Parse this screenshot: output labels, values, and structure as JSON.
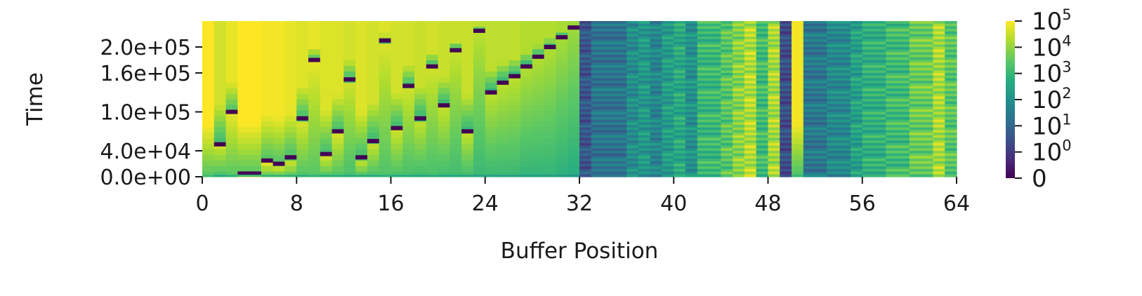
{
  "chart_data": {
    "type": "heatmap",
    "xlabel": "Buffer Position",
    "ylabel": "Time",
    "xlim": [
      0,
      64
    ],
    "ylim": [
      0,
      240000
    ],
    "x_ticks": [
      0,
      8,
      16,
      24,
      32,
      40,
      48,
      56,
      64
    ],
    "x_tick_labels": [
      "0",
      "8",
      "16",
      "24",
      "32",
      "40",
      "48",
      "56",
      "64"
    ],
    "y_ticks": [
      0,
      40000,
      100000,
      160000,
      200000
    ],
    "y_tick_labels": [
      "0.0e+00",
      "4.0e+04",
      "1.0e+05",
      "1.6e+05",
      "2.0e+05"
    ],
    "colormap": "viridis",
    "color_scale": "symlog",
    "colorbar": {
      "ticks": [
        0,
        1,
        10,
        100,
        1000,
        10000,
        100000
      ],
      "labels": [
        {
          "base": "0",
          "exp": ""
        },
        {
          "base": "10",
          "exp": "0"
        },
        {
          "base": "10",
          "exp": "1"
        },
        {
          "base": "10",
          "exp": "2"
        },
        {
          "base": "10",
          "exp": "3"
        },
        {
          "base": "10",
          "exp": "4"
        },
        {
          "base": "10",
          "exp": "5"
        }
      ]
    },
    "grid": false,
    "legend": "colorbar-right",
    "column_profiles": [
      {
        "x0": 0,
        "x1": 1,
        "level": 5.0,
        "pattern": "solid",
        "reset_time": 2000
      },
      {
        "x0": 1,
        "x1": 2,
        "level": 4.6,
        "pattern": "solid",
        "reset_time": 50000
      },
      {
        "x0": 2,
        "x1": 3,
        "level": 4.8,
        "pattern": "solid",
        "reset_time": 100000
      },
      {
        "x0": 3,
        "x1": 4,
        "level": 5.0,
        "pattern": "solid",
        "reset_time": 5000
      },
      {
        "x0": 4,
        "x1": 5,
        "level": 5.0,
        "pattern": "solid",
        "reset_time": 5000
      },
      {
        "x0": 5,
        "x1": 6,
        "level": 4.9,
        "pattern": "solid",
        "reset_time": 25000
      },
      {
        "x0": 6,
        "x1": 7,
        "level": 4.9,
        "pattern": "solid",
        "reset_time": 20000
      },
      {
        "x0": 7,
        "x1": 8,
        "level": 4.8,
        "pattern": "solid",
        "reset_time": 30000
      },
      {
        "x0": 8,
        "x1": 9,
        "level": 4.7,
        "pattern": "solid",
        "reset_time": 90000
      },
      {
        "x0": 9,
        "x1": 10,
        "level": 4.8,
        "pattern": "solid",
        "reset_time": 180000
      },
      {
        "x0": 10,
        "x1": 11,
        "level": 4.7,
        "pattern": "solid",
        "reset_time": 35000
      },
      {
        "x0": 11,
        "x1": 12,
        "level": 4.7,
        "pattern": "solid",
        "reset_time": 70000
      },
      {
        "x0": 12,
        "x1": 13,
        "level": 4.6,
        "pattern": "solid",
        "reset_time": 150000
      },
      {
        "x0": 13,
        "x1": 14,
        "level": 4.7,
        "pattern": "solid",
        "reset_time": 30000
      },
      {
        "x0": 14,
        "x1": 15,
        "level": 4.6,
        "pattern": "solid",
        "reset_time": 55000
      },
      {
        "x0": 15,
        "x1": 16,
        "level": 4.7,
        "pattern": "solid",
        "reset_time": 210000
      },
      {
        "x0": 16,
        "x1": 17,
        "level": 4.6,
        "pattern": "solid",
        "reset_time": 75000
      },
      {
        "x0": 17,
        "x1": 18,
        "level": 4.6,
        "pattern": "solid",
        "reset_time": 140000
      },
      {
        "x0": 18,
        "x1": 19,
        "level": 4.5,
        "pattern": "solid",
        "reset_time": 90000
      },
      {
        "x0": 19,
        "x1": 20,
        "level": 4.6,
        "pattern": "solid",
        "reset_time": 170000
      },
      {
        "x0": 20,
        "x1": 21,
        "level": 4.5,
        "pattern": "solid",
        "reset_time": 110000
      },
      {
        "x0": 21,
        "x1": 22,
        "level": 4.5,
        "pattern": "solid",
        "reset_time": 195000
      },
      {
        "x0": 22,
        "x1": 23,
        "level": 4.5,
        "pattern": "solid",
        "reset_time": 70000
      },
      {
        "x0": 23,
        "x1": 24,
        "level": 4.4,
        "pattern": "solid",
        "reset_time": 225000
      },
      {
        "x0": 24,
        "x1": 25,
        "level": 4.4,
        "pattern": "solid",
        "reset_time": 130000
      },
      {
        "x0": 25,
        "x1": 26,
        "level": 4.4,
        "pattern": "solid",
        "reset_time": 145000
      },
      {
        "x0": 26,
        "x1": 27,
        "level": 4.4,
        "pattern": "solid",
        "reset_time": 155000
      },
      {
        "x0": 27,
        "x1": 28,
        "level": 4.3,
        "pattern": "solid",
        "reset_time": 170000
      },
      {
        "x0": 28,
        "x1": 29,
        "level": 4.3,
        "pattern": "solid",
        "reset_time": 185000
      },
      {
        "x0": 29,
        "x1": 30,
        "level": 4.3,
        "pattern": "solid",
        "reset_time": 200000
      },
      {
        "x0": 30,
        "x1": 31,
        "level": 4.2,
        "pattern": "solid",
        "reset_time": 215000
      },
      {
        "x0": 31,
        "x1": 32,
        "level": 4.1,
        "pattern": "solid",
        "reset_time": 230000
      },
      {
        "x0": 32,
        "x1": 33,
        "level": 0.6,
        "pattern": "striped"
      },
      {
        "x0": 33,
        "x1": 36,
        "level": 1.3,
        "pattern": "striped"
      },
      {
        "x0": 36,
        "x1": 37,
        "level": 1.9,
        "pattern": "striped"
      },
      {
        "x0": 37,
        "x1": 38,
        "level": 2.2,
        "pattern": "striped"
      },
      {
        "x0": 38,
        "x1": 39,
        "level": 1.7,
        "pattern": "striped"
      },
      {
        "x0": 39,
        "x1": 40,
        "level": 2.3,
        "pattern": "striped"
      },
      {
        "x0": 40,
        "x1": 41,
        "level": 2.6,
        "pattern": "striped"
      },
      {
        "x0": 41,
        "x1": 42,
        "level": 2.0,
        "pattern": "striped"
      },
      {
        "x0": 42,
        "x1": 44,
        "level": 3.0,
        "pattern": "striped"
      },
      {
        "x0": 44,
        "x1": 45,
        "level": 3.4,
        "pattern": "striped"
      },
      {
        "x0": 45,
        "x1": 46,
        "level": 3.9,
        "pattern": "striped"
      },
      {
        "x0": 46,
        "x1": 47,
        "level": 4.3,
        "pattern": "striped"
      },
      {
        "x0": 47,
        "x1": 48,
        "level": 3.1,
        "pattern": "striped"
      },
      {
        "x0": 48,
        "x1": 49,
        "level": 4.2,
        "pattern": "striped"
      },
      {
        "x0": 49,
        "x1": 50,
        "level": 0.4,
        "pattern": "striped"
      },
      {
        "x0": 50,
        "x1": 51,
        "level": 4.9,
        "pattern": "solid",
        "reset_time": 3000
      },
      {
        "x0": 51,
        "x1": 53,
        "level": 1.4,
        "pattern": "striped"
      },
      {
        "x0": 53,
        "x1": 55,
        "level": 1.8,
        "pattern": "striped"
      },
      {
        "x0": 55,
        "x1": 56,
        "level": 2.4,
        "pattern": "striped"
      },
      {
        "x0": 56,
        "x1": 58,
        "level": 2.8,
        "pattern": "striped"
      },
      {
        "x0": 58,
        "x1": 60,
        "level": 3.1,
        "pattern": "striped"
      },
      {
        "x0": 60,
        "x1": 62,
        "level": 3.6,
        "pattern": "striped"
      },
      {
        "x0": 62,
        "x1": 63,
        "level": 4.2,
        "pattern": "striped"
      },
      {
        "x0": 63,
        "x1": 64,
        "level": 3.4,
        "pattern": "striped"
      }
    ]
  }
}
